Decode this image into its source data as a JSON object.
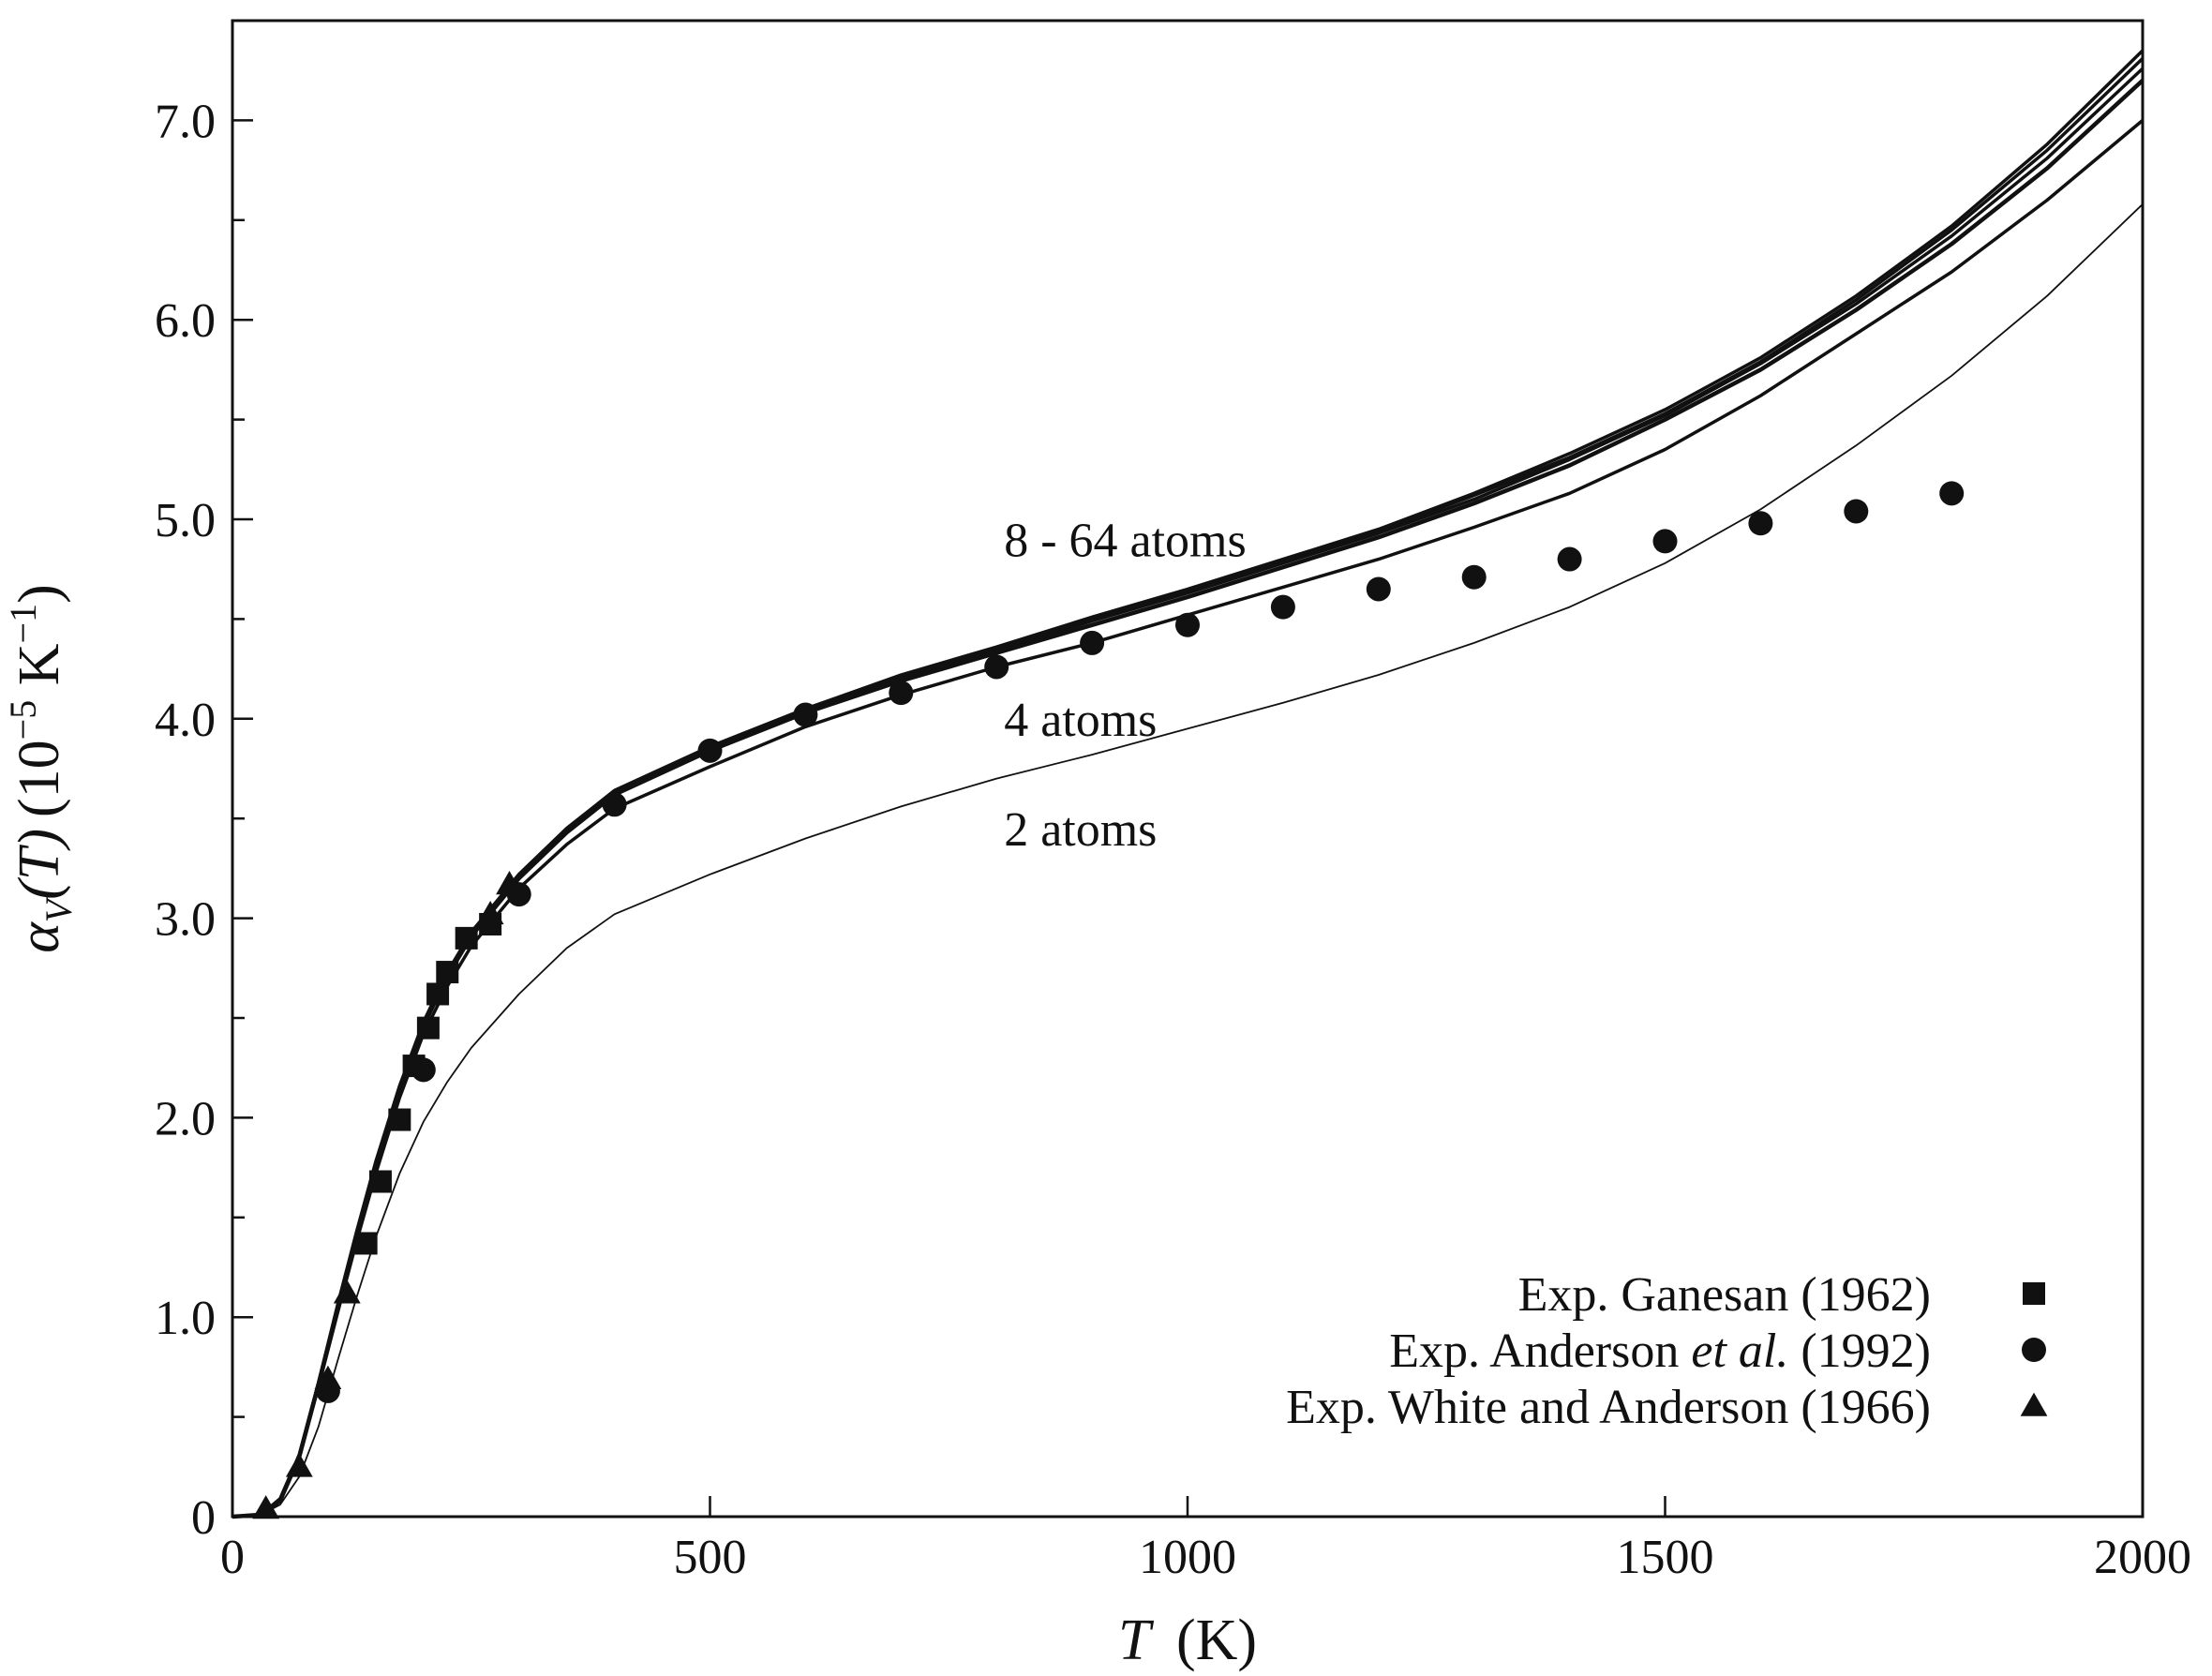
{
  "chart_data": {
    "type": "line",
    "xlabel": {
      "symbol": "T",
      "unit": "(K)"
    },
    "ylabel": {
      "symbol": "α",
      "subscript": "V",
      "arg": "(T)",
      "unit_open": "(10",
      "unit_exp": "−5",
      "unit_mid": " K",
      "unit_exp2": "−1",
      "unit_close": ")"
    },
    "xlim": [
      0,
      2000
    ],
    "ylim": [
      0,
      7.5
    ],
    "x_ticks": [
      0,
      500,
      1000,
      1500,
      2000
    ],
    "x_tick_labels": [
      "0",
      "500",
      "1000",
      "1500",
      "2000"
    ],
    "y_ticks": [
      0,
      1,
      2,
      3,
      4,
      5,
      6,
      7
    ],
    "y_tick_labels": [
      "0",
      "1.0",
      "2.0",
      "3.0",
      "4.0",
      "5.0",
      "6.0",
      "7.0"
    ],
    "y_minor_step": 0.5,
    "grid": false,
    "legend_position": "bottom-right",
    "annotations": [
      {
        "text": "8 - 64 atoms",
        "x": 800,
        "y": 4.9
      },
      {
        "text": "4 atoms",
        "x": 800,
        "y": 4.0
      },
      {
        "text": "2 atoms",
        "x": 800,
        "y": 3.45
      }
    ],
    "lines": [
      {
        "label": "2 atoms",
        "width": 1.8,
        "x": [
          0,
          30,
          50,
          70,
          90,
          110,
          130,
          150,
          175,
          200,
          225,
          250,
          300,
          350,
          400,
          500,
          600,
          700,
          800,
          900,
          1000,
          1100,
          1200,
          1300,
          1400,
          1500,
          1600,
          1700,
          1800,
          1900,
          2000
        ],
        "y": [
          0,
          0.01,
          0.06,
          0.2,
          0.45,
          0.78,
          1.1,
          1.4,
          1.72,
          1.98,
          2.18,
          2.35,
          2.62,
          2.85,
          3.02,
          3.22,
          3.4,
          3.56,
          3.7,
          3.82,
          3.95,
          4.08,
          4.22,
          4.38,
          4.56,
          4.78,
          5.05,
          5.37,
          5.72,
          6.12,
          6.58
        ]
      },
      {
        "label": "4 atoms",
        "width": 3.5,
        "x": [
          0,
          30,
          50,
          70,
          90,
          110,
          130,
          150,
          175,
          200,
          225,
          250,
          300,
          350,
          400,
          500,
          600,
          700,
          800,
          900,
          1000,
          1100,
          1200,
          1300,
          1400,
          1500,
          1600,
          1700,
          1800,
          1900,
          2000
        ],
        "y": [
          0,
          0.01,
          0.08,
          0.3,
          0.65,
          1.02,
          1.38,
          1.72,
          2.1,
          2.42,
          2.66,
          2.86,
          3.15,
          3.37,
          3.55,
          3.76,
          3.96,
          4.12,
          4.26,
          4.38,
          4.52,
          4.66,
          4.8,
          4.96,
          5.13,
          5.35,
          5.62,
          5.93,
          6.24,
          6.6,
          7.0
        ]
      },
      {
        "label": "8 atoms",
        "width": 4.5,
        "x": [
          0,
          30,
          50,
          70,
          90,
          110,
          130,
          150,
          175,
          200,
          225,
          250,
          300,
          350,
          400,
          500,
          600,
          700,
          800,
          900,
          1000,
          1100,
          1200,
          1300,
          1400,
          1500,
          1600,
          1700,
          1800,
          1900,
          2000
        ],
        "y": [
          0,
          0.01,
          0.08,
          0.3,
          0.66,
          1.04,
          1.41,
          1.76,
          2.14,
          2.46,
          2.71,
          2.91,
          3.2,
          3.43,
          3.62,
          3.84,
          4.03,
          4.19,
          4.33,
          4.47,
          4.61,
          4.76,
          4.91,
          5.08,
          5.27,
          5.5,
          5.75,
          6.05,
          6.38,
          6.76,
          7.2
        ]
      },
      {
        "label": "16 atoms",
        "width": 3.5,
        "x": [
          0,
          30,
          50,
          70,
          90,
          110,
          130,
          150,
          175,
          200,
          225,
          250,
          300,
          350,
          400,
          500,
          600,
          700,
          800,
          900,
          1000,
          1100,
          1200,
          1300,
          1400,
          1500,
          1600,
          1700,
          1800,
          1900,
          2000
        ],
        "y": [
          0,
          0.01,
          0.08,
          0.31,
          0.67,
          1.05,
          1.42,
          1.77,
          2.15,
          2.47,
          2.72,
          2.92,
          3.21,
          3.44,
          3.63,
          3.85,
          4.04,
          4.2,
          4.34,
          4.49,
          4.63,
          4.78,
          4.93,
          5.1,
          5.3,
          5.52,
          5.78,
          6.08,
          6.42,
          6.81,
          7.26
        ]
      },
      {
        "label": "32 atoms",
        "width": 3.5,
        "x": [
          0,
          30,
          50,
          70,
          90,
          110,
          130,
          150,
          175,
          200,
          225,
          250,
          300,
          350,
          400,
          500,
          600,
          700,
          800,
          900,
          1000,
          1100,
          1200,
          1300,
          1400,
          1500,
          1600,
          1700,
          1800,
          1900,
          2000
        ],
        "y": [
          0,
          0.01,
          0.09,
          0.31,
          0.67,
          1.05,
          1.42,
          1.77,
          2.15,
          2.47,
          2.72,
          2.93,
          3.22,
          3.45,
          3.64,
          3.86,
          4.05,
          4.21,
          4.35,
          4.5,
          4.64,
          4.79,
          4.94,
          5.12,
          5.31,
          5.53,
          5.79,
          6.1,
          6.45,
          6.85,
          7.31
        ]
      },
      {
        "label": "64 atoms",
        "width": 3.5,
        "x": [
          0,
          30,
          50,
          70,
          90,
          110,
          130,
          150,
          175,
          200,
          225,
          250,
          300,
          350,
          400,
          500,
          600,
          700,
          800,
          900,
          1000,
          1100,
          1200,
          1300,
          1400,
          1500,
          1600,
          1700,
          1800,
          1900,
          2000
        ],
        "y": [
          0,
          0.01,
          0.09,
          0.31,
          0.67,
          1.06,
          1.43,
          1.78,
          2.16,
          2.48,
          2.73,
          2.93,
          3.22,
          3.45,
          3.64,
          3.86,
          4.05,
          4.22,
          4.36,
          4.51,
          4.65,
          4.8,
          4.95,
          5.13,
          5.33,
          5.55,
          5.81,
          6.12,
          6.47,
          6.88,
          7.35
        ]
      }
    ],
    "series": [
      {
        "name": "Exp. Ganesan (1962)",
        "marker": "square",
        "x": [
          140,
          155,
          175,
          190,
          205,
          215,
          225,
          245,
          270
        ],
        "y": [
          1.37,
          1.68,
          1.99,
          2.26,
          2.45,
          2.62,
          2.73,
          2.9,
          2.97
        ]
      },
      {
        "name_parts": [
          "Exp. Anderson ",
          "et al.",
          " (1992)"
        ],
        "marker": "circle",
        "x": [
          100,
          200,
          300,
          400,
          500,
          600,
          700,
          800,
          900,
          1000,
          1100,
          1200,
          1300,
          1400,
          1500,
          1600,
          1700,
          1800
        ],
        "y": [
          0.63,
          2.24,
          3.12,
          3.57,
          3.84,
          4.02,
          4.13,
          4.26,
          4.38,
          4.47,
          4.56,
          4.65,
          4.71,
          4.8,
          4.89,
          4.98,
          5.04,
          5.13
        ]
      },
      {
        "name": "Exp. White and Anderson (1966)",
        "marker": "triangle",
        "x": [
          35,
          70,
          100,
          120,
          270,
          290
        ],
        "y": [
          0.04,
          0.25,
          0.69,
          1.12,
          3.02,
          3.17
        ]
      }
    ]
  }
}
